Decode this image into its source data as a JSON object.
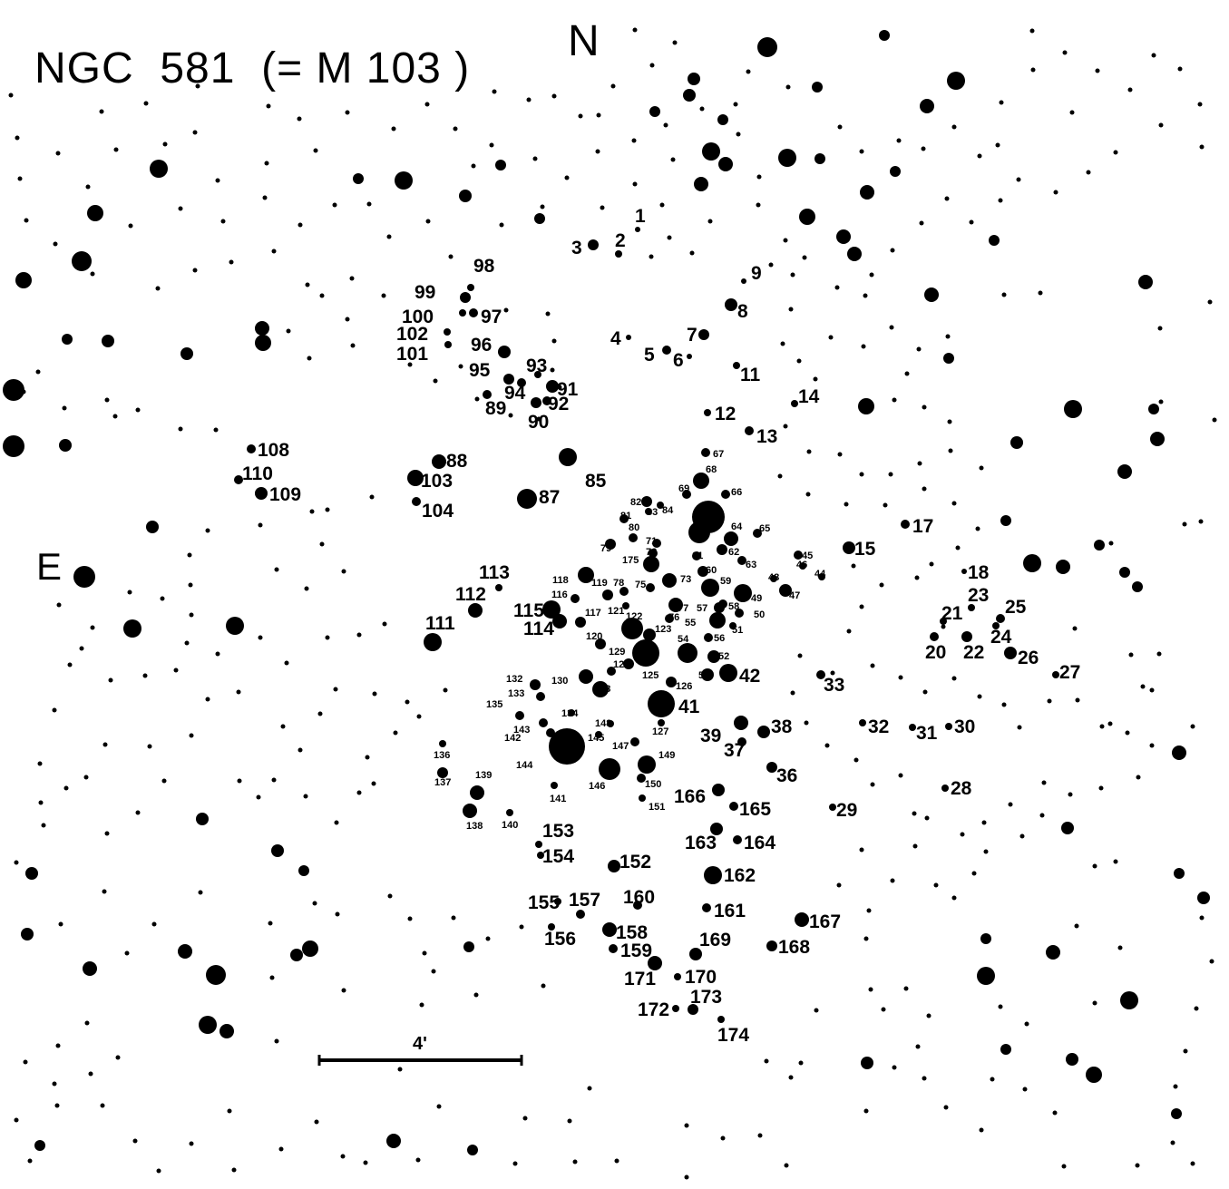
{
  "map": {
    "title": "NGC  581  (= M 103 )",
    "north_label": "N",
    "east_label": "E",
    "scale_label": "4'"
  },
  "star_labels": [
    "1",
    "2",
    "3",
    "4",
    "5",
    "6",
    "7",
    "8",
    "9",
    "11",
    "12",
    "13",
    "14",
    "15",
    "17",
    "18",
    "20",
    "21",
    "22",
    "23",
    "24",
    "25",
    "26",
    "27",
    "28",
    "29",
    "30",
    "31",
    "32",
    "33",
    "36",
    "37",
    "38",
    "39",
    "41",
    "42",
    "44",
    "45",
    "46",
    "47",
    "48",
    "49",
    "50",
    "51",
    "52",
    "53",
    "54",
    "55",
    "56",
    "57",
    "58",
    "59",
    "60",
    "61",
    "62",
    "63",
    "64",
    "65",
    "66",
    "67",
    "68",
    "69",
    "71",
    "72",
    "73",
    "75",
    "76",
    "77",
    "78",
    "79",
    "80",
    "81",
    "82",
    "83",
    "84",
    "85",
    "87",
    "88",
    "89",
    "90",
    "91",
    "92",
    "93",
    "94",
    "95",
    "96",
    "97",
    "98",
    "99",
    "100",
    "101",
    "102",
    "103",
    "104",
    "108",
    "109",
    "110",
    "111",
    "112",
    "113",
    "114",
    "115",
    "116",
    "117",
    "118",
    "119",
    "120",
    "121",
    "122",
    "123",
    "124",
    "125",
    "126",
    "127",
    "128",
    "129",
    "130",
    "132",
    "133",
    "134",
    "135",
    "136",
    "137",
    "138",
    "139",
    "140",
    "141",
    "142",
    "143",
    "144",
    "145",
    "146",
    "147",
    "148",
    "149",
    "150",
    "151",
    "152",
    "153",
    "154",
    "155",
    "156",
    "157",
    "158",
    "159",
    "160",
    "161",
    "162",
    "163",
    "164",
    "165",
    "166",
    "167",
    "168",
    "169",
    "170",
    "171",
    "172",
    "173",
    "174",
    "175"
  ],
  "colors": {
    "background": "#ffffff",
    "ink": "#000000"
  }
}
